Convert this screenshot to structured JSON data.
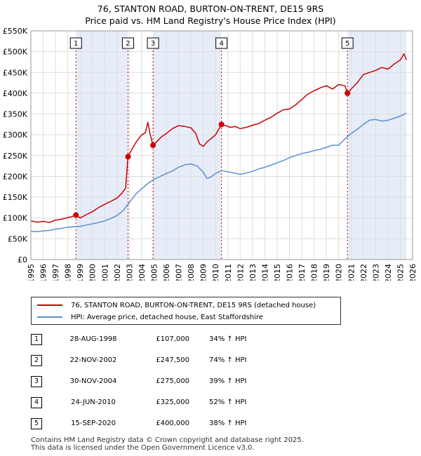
{
  "title": {
    "line1": "76, STANTON ROAD, BURTON-ON-TRENT, DE15 9RS",
    "line2": "Price paid vs. HM Land Registry's House Price Index (HPI)"
  },
  "colors": {
    "price_line": "#cc0000",
    "hpi_line": "#5b8fcf",
    "shade": "#e6ecf8",
    "marker_line": "#cc0000",
    "grid": "#dddddd"
  },
  "chart_data": {
    "type": "line",
    "xlim": [
      1995,
      2026
    ],
    "ylim": [
      0,
      550000
    ],
    "yticks": [
      {
        "value": 0,
        "label": "£0"
      },
      {
        "value": 50000,
        "label": "£50K"
      },
      {
        "value": 100000,
        "label": "£100K"
      },
      {
        "value": 150000,
        "label": "£150K"
      },
      {
        "value": 200000,
        "label": "£200K"
      },
      {
        "value": 250000,
        "label": "£250K"
      },
      {
        "value": 300000,
        "label": "£300K"
      },
      {
        "value": 350000,
        "label": "£350K"
      },
      {
        "value": 400000,
        "label": "£400K"
      },
      {
        "value": 450000,
        "label": "£450K"
      },
      {
        "value": 500000,
        "label": "£500K"
      },
      {
        "value": 550000,
        "label": "£550K"
      }
    ],
    "xticks": [
      "1995",
      "1996",
      "1997",
      "1998",
      "1999",
      "2000",
      "2001",
      "2002",
      "2003",
      "2004",
      "2005",
      "2006",
      "2007",
      "2008",
      "2009",
      "2010",
      "2011",
      "2012",
      "2013",
      "2014",
      "2015",
      "2016",
      "2017",
      "2018",
      "2019",
      "2020",
      "2021",
      "2022",
      "2023",
      "2024",
      "2025",
      "2026"
    ],
    "shaded_ranges": [
      [
        1998.66,
        2002.89
      ],
      [
        2004.92,
        2010.48
      ],
      [
        2020.71,
        2025.5
      ]
    ],
    "series": [
      {
        "name": "76, STANTON ROAD, BURTON-ON-TRENT, DE15 9RS (detached house)",
        "x": [
          1995.0,
          1995.5,
          1996.0,
          1996.5,
          1997.0,
          1997.5,
          1998.0,
          1998.3,
          1998.66,
          1999.0,
          1999.5,
          2000.0,
          2000.5,
          2001.0,
          2001.5,
          2002.0,
          2002.4,
          2002.7,
          2002.8,
          2002.89,
          2003.2,
          2003.6,
          2004.0,
          2004.3,
          2004.5,
          2004.7,
          2004.92,
          2005.2,
          2005.6,
          2006.0,
          2006.5,
          2007.0,
          2007.5,
          2008.0,
          2008.4,
          2008.7,
          2009.0,
          2009.3,
          2009.6,
          2010.0,
          2010.48,
          2010.8,
          2011.2,
          2011.6,
          2012.0,
          2012.5,
          2013.0,
          2013.5,
          2014.0,
          2014.5,
          2015.0,
          2015.5,
          2016.0,
          2016.5,
          2017.0,
          2017.5,
          2018.0,
          2018.5,
          2019.0,
          2019.5,
          2020.0,
          2020.5,
          2020.71,
          2021.0,
          2021.5,
          2022.0,
          2022.5,
          2023.0,
          2023.5,
          2024.0,
          2024.5,
          2025.0,
          2025.3,
          2025.5
        ],
        "y": [
          93000,
          90000,
          92000,
          89000,
          95000,
          97000,
          101000,
          103000,
          107000,
          100000,
          108000,
          115000,
          125000,
          133000,
          140000,
          148000,
          160000,
          172000,
          215000,
          247500,
          265000,
          285000,
          300000,
          305000,
          330000,
          300000,
          275000,
          283000,
          295000,
          303000,
          315000,
          322000,
          320000,
          317000,
          303000,
          278000,
          272000,
          283000,
          290000,
          300000,
          325000,
          322000,
          318000,
          320000,
          315000,
          318000,
          323000,
          327000,
          335000,
          342000,
          352000,
          360000,
          362000,
          372000,
          385000,
          398000,
          406000,
          413000,
          418000,
          410000,
          421000,
          418000,
          400000,
          410000,
          425000,
          445000,
          450000,
          455000,
          462000,
          458000,
          470000,
          480000,
          495000,
          480000
        ]
      },
      {
        "name": "HPI: Average price, detached house, East Staffordshire",
        "x": [
          1995.0,
          1995.5,
          1996.0,
          1996.5,
          1997.0,
          1997.5,
          1998.0,
          1998.5,
          1999.0,
          1999.5,
          2000.0,
          2000.5,
          2001.0,
          2001.5,
          2002.0,
          2002.5,
          2003.0,
          2003.5,
          2004.0,
          2004.5,
          2005.0,
          2005.5,
          2006.0,
          2006.5,
          2007.0,
          2007.5,
          2008.0,
          2008.5,
          2009.0,
          2009.3,
          2009.6,
          2010.0,
          2010.5,
          2011.0,
          2011.5,
          2012.0,
          2012.5,
          2013.0,
          2013.5,
          2014.0,
          2014.5,
          2015.0,
          2015.5,
          2016.0,
          2016.5,
          2017.0,
          2017.5,
          2018.0,
          2018.5,
          2019.0,
          2019.5,
          2020.0,
          2020.5,
          2021.0,
          2021.5,
          2022.0,
          2022.5,
          2023.0,
          2023.5,
          2024.0,
          2024.5,
          2025.0,
          2025.5
        ],
        "y": [
          68000,
          67000,
          69000,
          70000,
          73000,
          75000,
          78000,
          79000,
          80000,
          83000,
          86000,
          89000,
          93000,
          99000,
          106000,
          118000,
          137000,
          157000,
          170000,
          183000,
          193000,
          200000,
          207000,
          213000,
          222000,
          228000,
          230000,
          225000,
          210000,
          195000,
          198000,
          207000,
          214000,
          211000,
          208000,
          205000,
          208000,
          212000,
          218000,
          222000,
          227000,
          233000,
          238000,
          245000,
          250000,
          255000,
          258000,
          262000,
          265000,
          270000,
          275000,
          275000,
          290000,
          303000,
          313000,
          325000,
          335000,
          337000,
          333000,
          335000,
          340000,
          345000,
          352000
        ]
      }
    ],
    "sales": [
      {
        "label": "1",
        "x": 1998.66,
        "y": 107000
      },
      {
        "label": "2",
        "x": 2002.89,
        "y": 247500
      },
      {
        "label": "3",
        "x": 2004.92,
        "y": 275000
      },
      {
        "label": "4",
        "x": 2010.48,
        "y": 325000
      },
      {
        "label": "5",
        "x": 2020.71,
        "y": 400000
      }
    ]
  },
  "legend": {
    "price_label": "76, STANTON ROAD, BURTON-ON-TRENT, DE15 9RS (detached house)",
    "hpi_label": "HPI: Average price, detached house, East Staffordshire"
  },
  "sales_table": [
    {
      "num": "1",
      "date": "28-AUG-1998",
      "price": "£107,000",
      "hpi": "34% ↑ HPI"
    },
    {
      "num": "2",
      "date": "22-NOV-2002",
      "price": "£247,500",
      "hpi": "74% ↑ HPI"
    },
    {
      "num": "3",
      "date": "30-NOV-2004",
      "price": "£275,000",
      "hpi": "39% ↑ HPI"
    },
    {
      "num": "4",
      "date": "24-JUN-2010",
      "price": "£325,000",
      "hpi": "52% ↑ HPI"
    },
    {
      "num": "5",
      "date": "15-SEP-2020",
      "price": "£400,000",
      "hpi": "38% ↑ HPI"
    }
  ],
  "footer": {
    "line1": "Contains HM Land Registry data © Crown copyright and database right 2025.",
    "line2": "This data is licensed under the Open Government Licence v3.0."
  }
}
